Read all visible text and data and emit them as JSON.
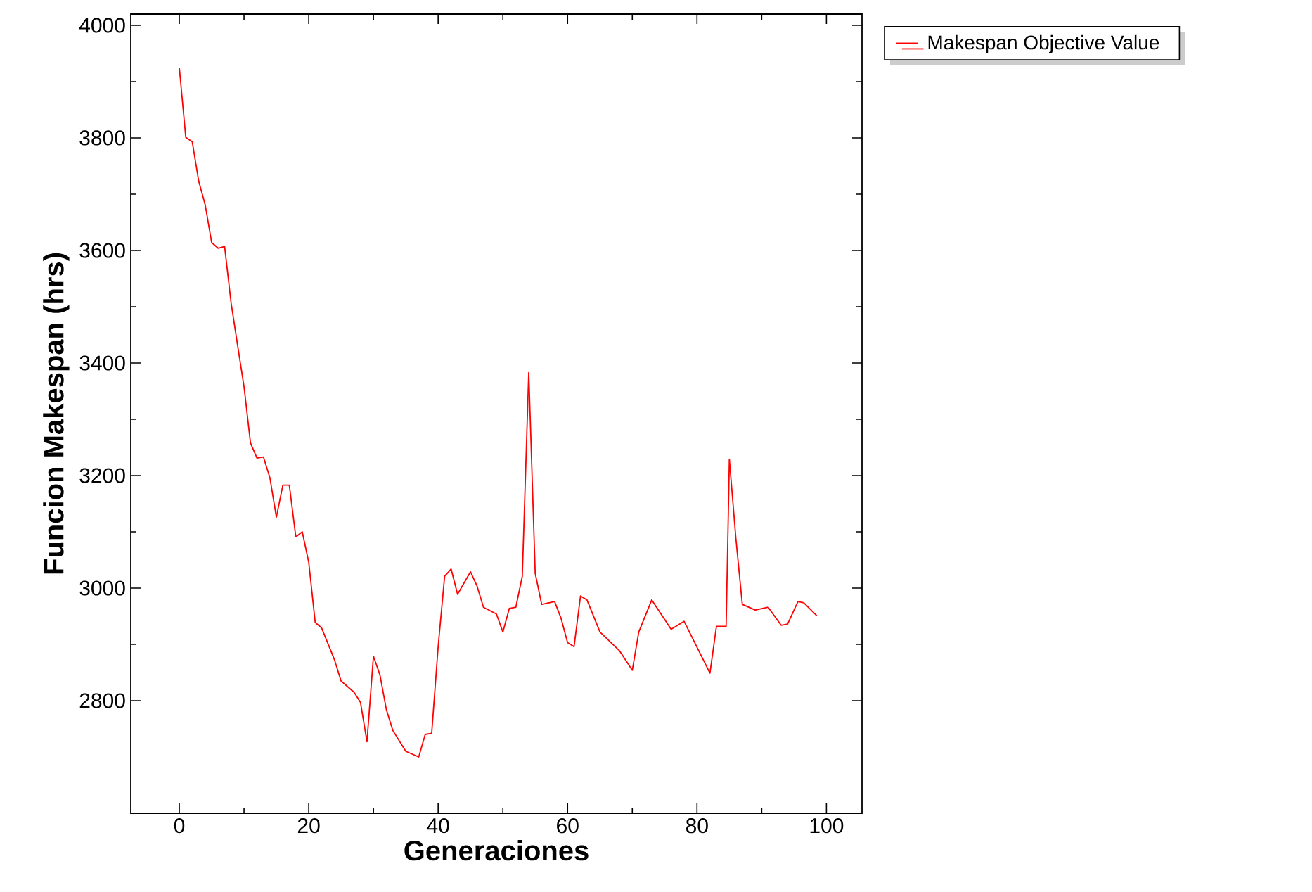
{
  "chart_data": {
    "type": "line",
    "xlabel": "Generaciones",
    "ylabel": "Funcion Makespan (hrs)",
    "xlim": [
      -7.5,
      105.5
    ],
    "ylim": [
      2600,
      4020
    ],
    "xticks": [
      0,
      20,
      40,
      60,
      80,
      100
    ],
    "yticks": [
      2800,
      3000,
      3200,
      3400,
      3600,
      3800,
      4000
    ],
    "grid": false,
    "legend": "top right",
    "marker": "none",
    "line_style": "solid",
    "series": [
      {
        "name": "Makespan Objective Value",
        "color": "#ff0000",
        "x": [
          0,
          1,
          2,
          3,
          4,
          5,
          6,
          7,
          8,
          9,
          10,
          11,
          12,
          13,
          14,
          15,
          16,
          17,
          18,
          19,
          20,
          21,
          22,
          24,
          25,
          27,
          28,
          29,
          30,
          31,
          32,
          33,
          35,
          37,
          38,
          39,
          40,
          41,
          42,
          43,
          45,
          46,
          47,
          49,
          50,
          51,
          52,
          53,
          54,
          55,
          56,
          58,
          59,
          60,
          61,
          62,
          63,
          65,
          68,
          70,
          71,
          73,
          76,
          78,
          82,
          83,
          84.5,
          85,
          86,
          87,
          89,
          91,
          93,
          94,
          95.6,
          96.5,
          98.5
        ],
        "values": [
          3925,
          3801,
          3793,
          3723,
          3681,
          3614,
          3604,
          3607,
          3507,
          3432,
          3358,
          3258,
          3231,
          3233,
          3196,
          3126,
          3183,
          3183,
          3091,
          3100,
          3046,
          2939,
          2929,
          2872,
          2835,
          2815,
          2797,
          2727,
          2879,
          2846,
          2784,
          2747,
          2710,
          2700,
          2740,
          2742,
          2896,
          3021,
          3034,
          2989,
          3029,
          3004,
          2966,
          2954,
          2922,
          2964,
          2966,
          3021,
          3383,
          3026,
          2971,
          2976,
          2946,
          2903,
          2896,
          2986,
          2979,
          2922,
          2889,
          2854,
          2922,
          2979,
          2927,
          2941,
          2849,
          2932,
          2932,
          3229,
          3089,
          2971,
          2961,
          2966,
          2934,
          2936,
          2976,
          2974,
          2951
        ]
      }
    ]
  }
}
